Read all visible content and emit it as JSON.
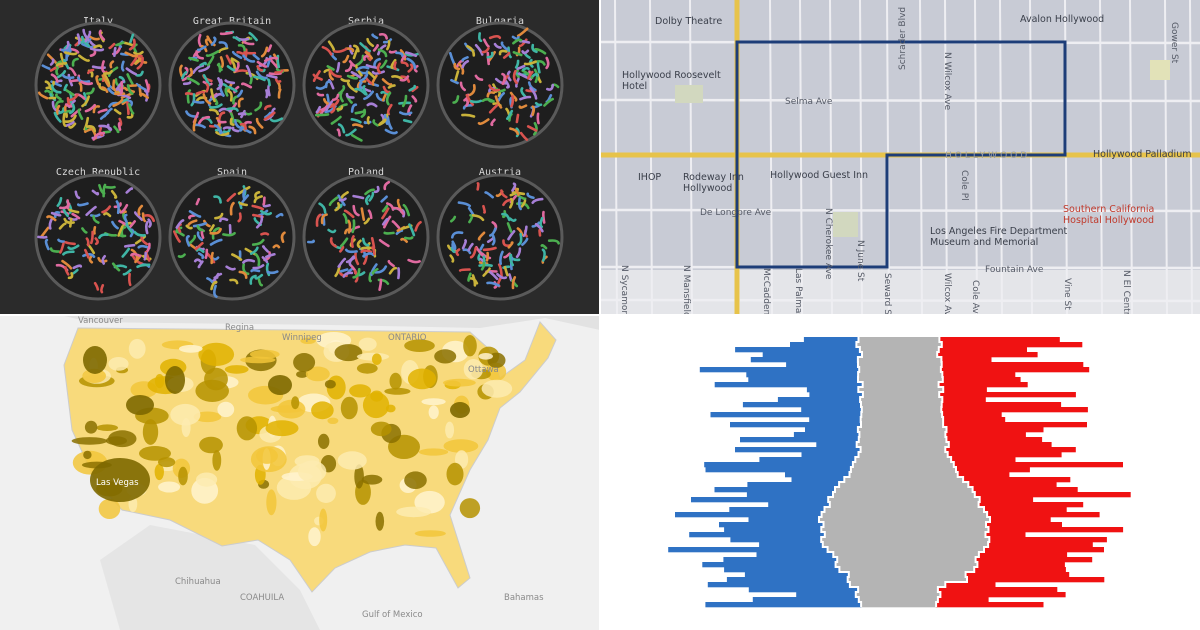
{
  "panels": {
    "particle_chart": {
      "labels": [
        "Italy",
        "Great Britain",
        "Serbia",
        "Bulgaria",
        "Czech Republic",
        "Spain",
        "Poland",
        "Austria"
      ]
    },
    "street_map": {
      "labels": [
        "Dolby Theatre",
        "Avalon Hollywood",
        "Hollywood Roosevelt Hotel",
        "Selma Ave",
        "Schrader Blvd",
        "N Wilcox Ave",
        "HOLLYWOOD",
        "Hollywood Palladium",
        "IHOP",
        "Rodeway Inn Hollywood",
        "Hollywood Guest Inn",
        "Cole Pl",
        "De Longpre Ave",
        "N Cherokee Ave",
        "N June St",
        "Los Angeles Fire Department Museum and Memorial",
        "Southern California Hospital Hollywood",
        "Fountain Ave",
        "N Sycamore Ave",
        "N Mansfield Ave",
        "McCadden Pl",
        "Las Palmas Ave",
        "Seward St",
        "Wilcox Ave",
        "Cole Ave",
        "Vine St",
        "N El Centro Ave",
        "Gower St"
      ]
    },
    "us_map": {
      "labels": [
        "Vancouver",
        "Regina",
        "Winnipeg",
        "ONTARIO",
        "Ottawa",
        "Las Vegas",
        "Chihuahua",
        "COAHUILA",
        "Gulf of Mexico",
        "Bahamas"
      ]
    }
  }
}
